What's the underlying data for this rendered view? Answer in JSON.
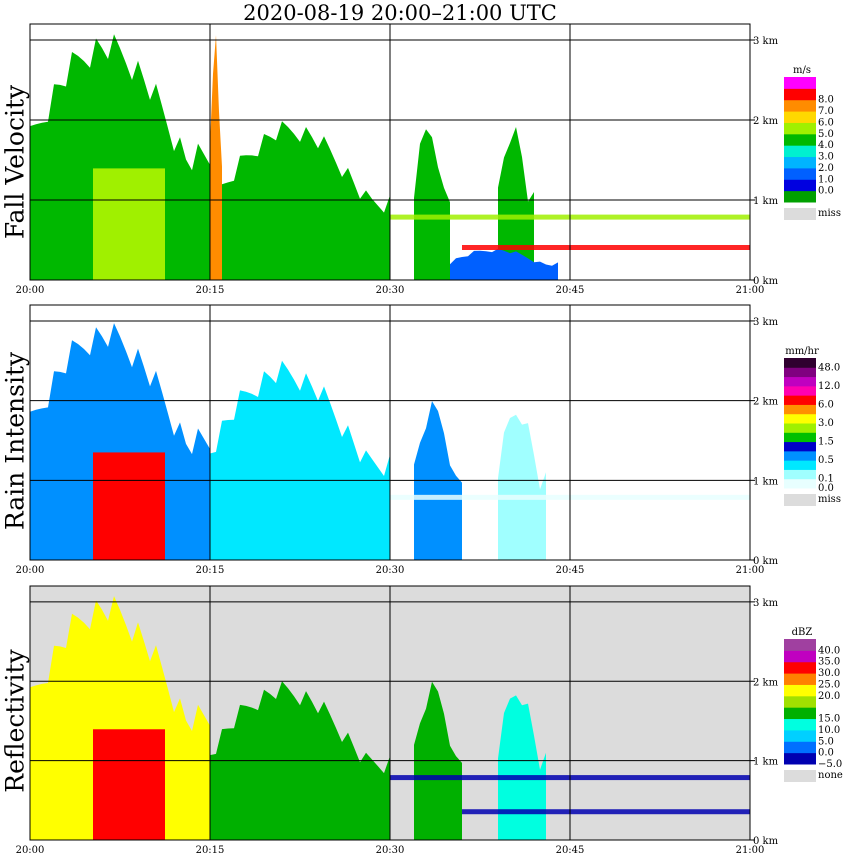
{
  "title": "2020-08-19   20:00–21:00 UTC",
  "x_ticks": [
    "20:00",
    "20:15",
    "20:30",
    "20:45",
    "21:00"
  ],
  "height_ticks": [
    "0 km",
    "1 km",
    "2 km",
    "3 km"
  ],
  "panels": [
    {
      "id": "fall",
      "ylabel": "Fall Velocity",
      "unit": "m/s",
      "missing_label": "miss",
      "missing_color": "#dcdcdc",
      "background": "#ffffff",
      "colorbar": [
        {
          "label": "",
          "color": "#00a000"
        },
        {
          "label": "0.0",
          "color": "#0000e0"
        },
        {
          "label": "1.0",
          "color": "#0060ff"
        },
        {
          "label": "2.0",
          "color": "#00b4ff"
        },
        {
          "label": "3.0",
          "color": "#00f0d0"
        },
        {
          "label": "4.0",
          "color": "#00b800"
        },
        {
          "label": "5.0",
          "color": "#a0f000"
        },
        {
          "label": "6.0",
          "color": "#ffd800"
        },
        {
          "label": "7.0",
          "color": "#ff8c00"
        },
        {
          "label": "8.0",
          "color": "#ff0000"
        },
        {
          "label": "",
          "color": "#ff00ff"
        }
      ]
    },
    {
      "id": "rain",
      "ylabel": "Rain Intensity",
      "unit": "mm/hr",
      "missing_label": "miss",
      "missing_color": "#dcdcdc",
      "background": "#ffffff",
      "colorbar": [
        {
          "label": "0.0",
          "color": "#e8ffff"
        },
        {
          "label": "0.1",
          "color": "#a0ffff"
        },
        {
          "label": "",
          "color": "#00e8ff"
        },
        {
          "label": "0.5",
          "color": "#0090ff"
        },
        {
          "label": "",
          "color": "#0000c8"
        },
        {
          "label": "1.5",
          "color": "#00c000"
        },
        {
          "label": "",
          "color": "#a0f000"
        },
        {
          "label": "3.0",
          "color": "#ffff00"
        },
        {
          "label": "",
          "color": "#ff9000"
        },
        {
          "label": "6.0",
          "color": "#ff0000"
        },
        {
          "label": "",
          "color": "#ff00b0"
        },
        {
          "label": "12.0",
          "color": "#c000c0"
        },
        {
          "label": "",
          "color": "#800080"
        },
        {
          "label": "48.0",
          "color": "#300030"
        }
      ]
    },
    {
      "id": "refl",
      "ylabel": "Reflectivity",
      "unit": "dBZ",
      "missing_label": "none",
      "missing_color": "#dcdcdc",
      "background": "#dcdcdc",
      "colorbar": [
        {
          "label": "−5.0",
          "color": "#0000b0"
        },
        {
          "label": "0.0",
          "color": "#0070ff"
        },
        {
          "label": "5.0",
          "color": "#00d0ff"
        },
        {
          "label": "10.0",
          "color": "#00ffe0"
        },
        {
          "label": "15.0",
          "color": "#00b000"
        },
        {
          "label": "",
          "color": "#a0e000"
        },
        {
          "label": "20.0",
          "color": "#ffff00"
        },
        {
          "label": "25.0",
          "color": "#ff8000"
        },
        {
          "label": "30.0",
          "color": "#ff0000"
        },
        {
          "label": "35.0",
          "color": "#c000c0"
        },
        {
          "label": "40.0",
          "color": "#a040a0"
        }
      ]
    }
  ],
  "chart_data": {
    "type": "heatmap",
    "title": "2020-08-19   20:00–21:00 UTC",
    "x_range": [
      "20:00",
      "21:00"
    ],
    "y_range_km": [
      0,
      3.2
    ],
    "grid": true,
    "panels": [
      {
        "name": "Fall Velocity",
        "unit": "m/s",
        "echo_cells": [
          {
            "t": [
              "20:00",
              "20:15"
            ],
            "top_km": 3.1,
            "value": 4.0,
            "core_value": 5.5
          },
          {
            "t": [
              "20:15",
              "20:16"
            ],
            "top_km": 3.2,
            "value": 7.5
          },
          {
            "t": [
              "20:16",
              "20:30"
            ],
            "top_km": 2.0,
            "value": 4.0
          },
          {
            "t": [
              "20:32",
              "20:35"
            ],
            "top_km": 2.0,
            "value": 4.0
          },
          {
            "t": [
              "20:39",
              "20:42"
            ],
            "top_km": 2.0,
            "value": 4.5
          },
          {
            "t": [
              "20:35",
              "20:44"
            ],
            "top_km": 0.4,
            "value": 1.0
          }
        ],
        "layers": [
          {
            "t": [
              "20:30",
              "21:00"
            ],
            "height_km": 0.78,
            "value": 5.0
          },
          {
            "t": [
              "20:36",
              "21:00"
            ],
            "height_km": 0.4,
            "value": 8.5
          }
        ]
      },
      {
        "name": "Rain Intensity",
        "unit": "mm/hr",
        "echo_cells": [
          {
            "t": [
              "20:00",
              "20:15"
            ],
            "top_km": 3.0,
            "value": 0.5,
            "core_value": 6.0
          },
          {
            "t": [
              "20:15",
              "20:30"
            ],
            "top_km": 2.5,
            "value": 0.3
          },
          {
            "t": [
              "20:32",
              "20:36"
            ],
            "top_km": 2.0,
            "value": 0.5
          },
          {
            "t": [
              "20:39",
              "20:43"
            ],
            "top_km": 2.0,
            "value": 0.1
          }
        ],
        "layers": [
          {
            "t": [
              "20:30",
              "21:00"
            ],
            "height_km": 0.78,
            "value": 0.0
          }
        ]
      },
      {
        "name": "Reflectivity",
        "unit": "dBZ",
        "echo_cells": [
          {
            "t": [
              "20:00",
              "20:15"
            ],
            "top_km": 3.1,
            "value": 20.0,
            "core_value": 30.0
          },
          {
            "t": [
              "20:15",
              "20:30"
            ],
            "top_km": 2.0,
            "value": 17.0
          },
          {
            "t": [
              "20:32",
              "20:36"
            ],
            "top_km": 2.0,
            "value": 15.0
          },
          {
            "t": [
              "20:39",
              "20:43"
            ],
            "top_km": 2.0,
            "value": 10.0
          }
        ],
        "layers": [
          {
            "t": [
              "20:30",
              "21:00"
            ],
            "height_km": 0.78,
            "value": -5.0
          },
          {
            "t": [
              "20:36",
              "21:00"
            ],
            "height_km": 0.35,
            "value": -10.0
          }
        ]
      }
    ]
  }
}
